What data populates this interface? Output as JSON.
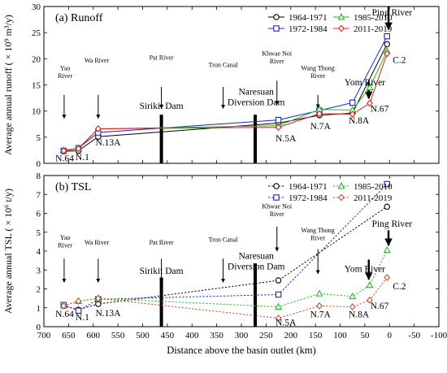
{
  "chart_data": [
    {
      "type": "line",
      "panel_label": "(a) Runoff",
      "ylabel": "Average annual runoff ( × 10⁹ m³/y)",
      "ylim": [
        0,
        30
      ],
      "yticks": [
        0,
        5,
        10,
        15,
        20,
        25,
        30
      ],
      "xlim": [
        700,
        -100
      ],
      "xticks": [
        700,
        650,
        600,
        550,
        500,
        450,
        400,
        350,
        300,
        250,
        200,
        150,
        100,
        50,
        0,
        -50,
        -100
      ],
      "line_style": "solid",
      "legend_position": "top-right",
      "series": [
        {
          "name": "1964-1971",
          "color": "#000000",
          "marker": "circle",
          "x": [
            660,
            630,
            590,
            225,
            142,
            75,
            5
          ],
          "y": [
            2.3,
            2.4,
            5.1,
            7.7,
            9.2,
            9.6,
            22.8
          ]
        },
        {
          "name": "1972-1984",
          "color": "#1f1fd0",
          "marker": "square",
          "x": [
            660,
            630,
            590,
            225,
            142,
            75,
            5
          ],
          "y": [
            2.4,
            2.9,
            5.9,
            8.3,
            10.1,
            11.6,
            24.3
          ]
        },
        {
          "name": "1985-2010",
          "color": "#22bb22",
          "marker": "triangle",
          "x": [
            660,
            630,
            590,
            225,
            142,
            75,
            40,
            5
          ],
          "y": [
            2.5,
            2.9,
            6.6,
            7.2,
            10.3,
            10.2,
            14.5,
            21.5
          ]
        },
        {
          "name": "2011-2019",
          "color": "#e02020",
          "marker": "diamond",
          "x": [
            660,
            630,
            590,
            225,
            142,
            75,
            40,
            5
          ],
          "y": [
            2.4,
            2.8,
            6.6,
            6.9,
            9.5,
            9.4,
            11.5,
            21.0
          ]
        }
      ],
      "annotations": [
        {
          "text": [
            "Yao",
            "River"
          ],
          "x": 657,
          "y": 17.8
        },
        {
          "text": [
            "Wa River"
          ],
          "x": 593,
          "y": 19.3
        },
        {
          "text": [
            "Pat River"
          ],
          "x": 462,
          "y": 19.8
        },
        {
          "text": [
            "Tron Canal"
          ],
          "x": 337,
          "y": 18.4
        },
        {
          "text": [
            "Khwae Noi",
            "River"
          ],
          "x": 228,
          "y": 20.6
        },
        {
          "text": [
            "Wang Thong",
            "River"
          ],
          "x": 145,
          "y": 17.8
        },
        {
          "text": [
            "Yom River"
          ],
          "x": 50,
          "y": 14.9,
          "size": "large"
        },
        {
          "text": [
            "Ping River"
          ],
          "x": -5,
          "y": 28.3,
          "size": "large"
        },
        {
          "text": [
            "Sirikit Dam"
          ],
          "x": 462,
          "y": 10.4,
          "size": "large"
        },
        {
          "text": [
            "Naresuan",
            "Diversion Dam"
          ],
          "x": 270,
          "y": 13.1,
          "size": "large"
        },
        {
          "text": [
            "N.64"
          ],
          "x": 658,
          "y": 0.4,
          "size": "large"
        },
        {
          "text": [
            "N.1"
          ],
          "x": 622,
          "y": 0.6,
          "size": "large"
        },
        {
          "text": [
            "N.13A"
          ],
          "x": 570,
          "y": 3.4,
          "size": "large"
        },
        {
          "text": [
            "N.5A"
          ],
          "x": 210,
          "y": 4.2,
          "size": "large"
        },
        {
          "text": [
            "N.7A"
          ],
          "x": 140,
          "y": 6.5,
          "size": "large"
        },
        {
          "text": [
            "N.8A"
          ],
          "x": 62,
          "y": 7.6,
          "size": "large"
        },
        {
          "text": [
            "N.67"
          ],
          "x": 20,
          "y": 9.9,
          "size": "large"
        },
        {
          "text": [
            "C.2"
          ],
          "x": -20,
          "y": 19.2,
          "size": "large"
        }
      ],
      "arrows": [
        {
          "x": 659,
          "from": 13.1,
          "to": 8.6
        },
        {
          "x": 590,
          "from": 13.1,
          "to": 8.6
        },
        {
          "x": 462,
          "from": 14.6,
          "to": 10.5
        },
        {
          "x": 337,
          "from": 14.6,
          "to": 10.5
        },
        {
          "x": 228,
          "from": 15.8,
          "to": 11.2
        },
        {
          "x": 145,
          "from": 13.1,
          "to": 10.6
        },
        {
          "x": 42,
          "from": 15.6,
          "to": 12.4,
          "bold": true
        },
        {
          "x": 2,
          "from": 30,
          "to": 25.6,
          "bold": true
        }
      ],
      "dam_bars": [
        {
          "x": 462,
          "from": 0,
          "to": 9.3
        },
        {
          "x": 272,
          "from": 0,
          "to": 9.3
        }
      ]
    },
    {
      "type": "line",
      "panel_label": "(b) TSL",
      "ylabel": "Average annual TSL ( × 10⁶ t/y)",
      "ylim": [
        0,
        8
      ],
      "yticks": [
        0,
        1,
        2,
        3,
        4,
        5,
        6,
        7,
        8
      ],
      "xlim": [
        700,
        -100
      ],
      "xticks": [
        700,
        650,
        600,
        550,
        500,
        450,
        400,
        350,
        300,
        250,
        200,
        150,
        100,
        50,
        0,
        -50,
        -100
      ],
      "xlabel": "Distance above the basin outlet (km)",
      "line_style": "dashed",
      "legend_position": "top-right",
      "series": [
        {
          "name": "1964-1971",
          "color": "#000000",
          "marker": "circle",
          "x": [
            660,
            630,
            590,
            225,
            5
          ],
          "y": [
            1.1,
            0.9,
            1.2,
            2.45,
            6.35
          ]
        },
        {
          "name": "1972-1984",
          "color": "#1f1fd0",
          "marker": "square",
          "x": [
            660,
            630,
            590,
            225,
            5
          ],
          "y": [
            1.15,
            0.85,
            1.45,
            1.7,
            7.55
          ]
        },
        {
          "name": "1985-2010",
          "color": "#22bb22",
          "marker": "triangle",
          "x": [
            660,
            630,
            590,
            225,
            142,
            75,
            40,
            5
          ],
          "y": [
            1.1,
            1.35,
            1.5,
            1.05,
            1.75,
            1.6,
            2.2,
            4.05
          ]
        },
        {
          "name": "2011-2019",
          "color": "#c0502a",
          "marker": "diamond",
          "x": [
            660,
            630,
            590,
            225,
            142,
            75,
            40,
            5
          ],
          "y": [
            1.1,
            1.35,
            1.5,
            0.45,
            1.1,
            1.05,
            1.4,
            2.6
          ]
        }
      ],
      "annotations": [
        {
          "text": [
            "Yao",
            "River"
          ],
          "x": 657,
          "y": 4.6
        },
        {
          "text": [
            "Wa River"
          ],
          "x": 593,
          "y": 4.35
        },
        {
          "text": [
            "Pat River"
          ],
          "x": 462,
          "y": 4.35
        },
        {
          "text": [
            "Tron Canal"
          ],
          "x": 337,
          "y": 4.5
        },
        {
          "text": [
            "Khwae Noi",
            "River"
          ],
          "x": 228,
          "y": 6.25
        },
        {
          "text": [
            "Wang Thong",
            "River"
          ],
          "x": 145,
          "y": 5.0
        },
        {
          "text": [
            "Yom River"
          ],
          "x": 50,
          "y": 2.9,
          "size": "large"
        },
        {
          "text": [
            "Ping River"
          ],
          "x": -5,
          "y": 5.3,
          "size": "large"
        },
        {
          "text": [
            "Sirikit Dam"
          ],
          "x": 462,
          "y": 2.8,
          "size": "large"
        },
        {
          "text": [
            "Naresuan",
            "Diversion Dam"
          ],
          "x": 270,
          "y": 3.6,
          "size": "large"
        },
        {
          "text": [
            "N.64"
          ],
          "x": 658,
          "y": 0.52,
          "size": "large"
        },
        {
          "text": [
            "N.1"
          ],
          "x": 622,
          "y": 0.35,
          "size": "large"
        },
        {
          "text": [
            "N.13A"
          ],
          "x": 570,
          "y": 0.55,
          "size": "large"
        },
        {
          "text": [
            "N.5A"
          ],
          "x": 210,
          "y": 0.07,
          "size": "large"
        },
        {
          "text": [
            "N.7A"
          ],
          "x": 140,
          "y": 0.5,
          "size": "large"
        },
        {
          "text": [
            "N.8A"
          ],
          "x": 62,
          "y": 0.5,
          "size": "large"
        },
        {
          "text": [
            "N.67"
          ],
          "x": 20,
          "y": 0.95,
          "size": "large"
        },
        {
          "text": [
            "C.2"
          ],
          "x": -20,
          "y": 1.98,
          "size": "large"
        }
      ],
      "arrows": [
        {
          "x": 659,
          "from": 3.6,
          "to": 2.35
        },
        {
          "x": 590,
          "from": 3.6,
          "to": 2.35
        },
        {
          "x": 462,
          "from": 3.6,
          "to": 2.35
        },
        {
          "x": 337,
          "from": 3.6,
          "to": 2.35
        },
        {
          "x": 228,
          "from": 5.3,
          "to": 4.0
        },
        {
          "x": 145,
          "from": 4.1,
          "to": 2.8
        },
        {
          "x": 42,
          "from": 3.55,
          "to": 2.5,
          "bold": true
        },
        {
          "x": 2,
          "from": 5.1,
          "to": 4.3,
          "bold": true
        }
      ],
      "dam_bars": [
        {
          "x": 462,
          "from": 0,
          "to": 2.6
        },
        {
          "x": 272,
          "from": 0,
          "to": 3.35
        }
      ]
    }
  ]
}
